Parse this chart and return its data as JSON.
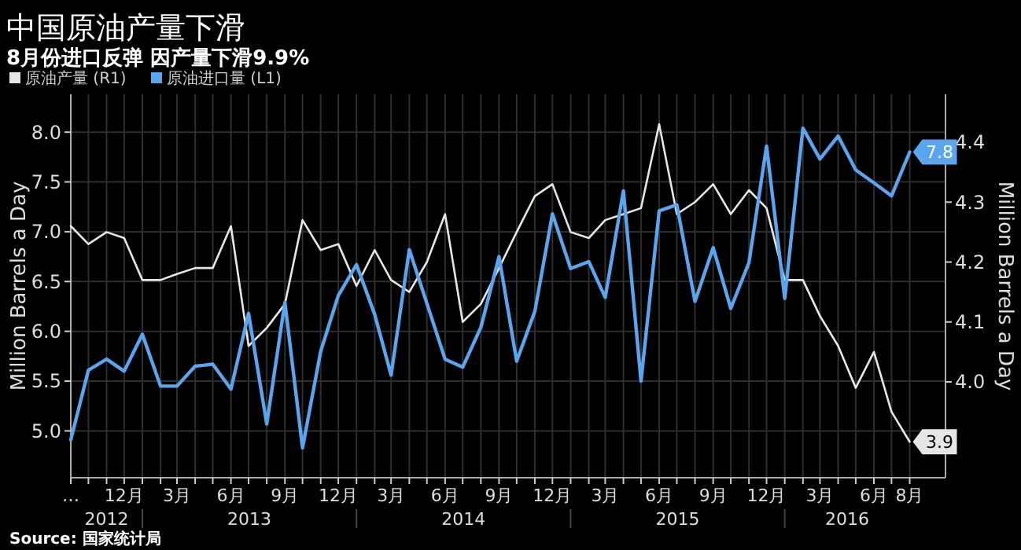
{
  "chart_data": {
    "type": "line",
    "title": "中国原油产量下滑",
    "subtitle": "8月份进口反弹 因产量下滑9.9%",
    "ylabel": "Million Barrels a Day",
    "y2label": "Million Barrels a Day",
    "x": [
      "2012-09",
      "2012-10",
      "2012-11",
      "2012-12",
      "2013-01",
      "2013-02",
      "2013-03",
      "2013-04",
      "2013-05",
      "2013-06",
      "2013-07",
      "2013-08",
      "2013-09",
      "2013-10",
      "2013-11",
      "2013-12",
      "2014-01",
      "2014-02",
      "2014-03",
      "2014-04",
      "2014-05",
      "2014-06",
      "2014-07",
      "2014-08",
      "2014-09",
      "2014-10",
      "2014-11",
      "2014-12",
      "2015-01",
      "2015-02",
      "2015-03",
      "2015-04",
      "2015-05",
      "2015-06",
      "2015-07",
      "2015-08",
      "2015-09",
      "2015-10",
      "2015-11",
      "2015-12",
      "2016-01",
      "2016-02",
      "2016-03",
      "2016-04",
      "2016-05",
      "2016-06",
      "2016-07",
      "2016-08"
    ],
    "series": [
      {
        "name": "原油产量 (R1)",
        "color": "#e6e6e6",
        "axis": "y2",
        "values": [
          4.26,
          4.23,
          4.25,
          4.24,
          4.17,
          4.17,
          4.18,
          4.19,
          4.19,
          4.26,
          4.06,
          4.09,
          4.13,
          4.27,
          4.22,
          4.23,
          4.16,
          4.22,
          4.17,
          4.15,
          4.2,
          4.28,
          4.1,
          4.13,
          4.19,
          4.25,
          4.31,
          4.33,
          4.25,
          4.24,
          4.27,
          4.28,
          4.29,
          4.43,
          4.28,
          4.3,
          4.33,
          4.28,
          4.32,
          4.29,
          4.17,
          4.17,
          4.11,
          4.06,
          3.99,
          4.05,
          3.95,
          3.9
        ],
        "value_labels": [
          null,
          null,
          null,
          null,
          null,
          null,
          null,
          null,
          null,
          null,
          null,
          null,
          null,
          null,
          null,
          null,
          null,
          null,
          null,
          null,
          null,
          null,
          null,
          null,
          null,
          null,
          null,
          null,
          null,
          null,
          null,
          null,
          null,
          null,
          null,
          null,
          null,
          null,
          null,
          null,
          null,
          null,
          null,
          null,
          null,
          null,
          null,
          "3.9"
        ]
      },
      {
        "name": "原油进口量 (L1)",
        "color": "#5aa5ee",
        "axis": "y",
        "values": [
          4.91,
          5.61,
          5.72,
          5.6,
          5.97,
          5.45,
          5.45,
          5.65,
          5.67,
          5.42,
          6.18,
          5.07,
          6.29,
          4.83,
          5.8,
          6.36,
          6.67,
          6.17,
          5.56,
          6.82,
          6.28,
          5.72,
          5.64,
          6.04,
          6.75,
          5.7,
          6.2,
          7.18,
          6.63,
          6.7,
          6.34,
          7.41,
          5.5,
          7.21,
          7.27,
          6.3,
          6.84,
          6.23,
          6.69,
          7.86,
          6.33,
          8.04,
          7.73,
          7.96,
          7.62,
          7.49,
          7.36,
          7.8
        ],
        "value_labels": [
          null,
          null,
          null,
          null,
          null,
          null,
          null,
          null,
          null,
          null,
          null,
          null,
          null,
          null,
          null,
          null,
          null,
          null,
          null,
          null,
          null,
          null,
          null,
          null,
          null,
          null,
          null,
          null,
          null,
          null,
          null,
          null,
          null,
          null,
          null,
          null,
          null,
          null,
          null,
          null,
          null,
          null,
          null,
          null,
          null,
          null,
          null,
          "7.8"
        ]
      }
    ],
    "xlim": [
      "2012-09",
      "2016-10"
    ],
    "xticks": [
      {
        "value": "2012-09",
        "label": "…"
      },
      {
        "value": "2012-10",
        "label": null
      },
      {
        "value": "2012-11",
        "label": null
      },
      {
        "value": "2012-12",
        "label": "12月"
      },
      {
        "value": "2013-01",
        "label": null
      },
      {
        "value": "2013-02",
        "label": null
      },
      {
        "value": "2013-03",
        "label": "3月"
      },
      {
        "value": "2013-04",
        "label": null
      },
      {
        "value": "2013-05",
        "label": null
      },
      {
        "value": "2013-06",
        "label": "6月"
      },
      {
        "value": "2013-07",
        "label": null
      },
      {
        "value": "2013-08",
        "label": null
      },
      {
        "value": "2013-09",
        "label": "9月"
      },
      {
        "value": "2013-10",
        "label": null
      },
      {
        "value": "2013-11",
        "label": null
      },
      {
        "value": "2013-12",
        "label": "12月"
      },
      {
        "value": "2014-01",
        "label": null
      },
      {
        "value": "2014-02",
        "label": null
      },
      {
        "value": "2014-03",
        "label": "3月"
      },
      {
        "value": "2014-04",
        "label": null
      },
      {
        "value": "2014-05",
        "label": null
      },
      {
        "value": "2014-06",
        "label": "6月"
      },
      {
        "value": "2014-07",
        "label": null
      },
      {
        "value": "2014-08",
        "label": null
      },
      {
        "value": "2014-09",
        "label": "9月"
      },
      {
        "value": "2014-10",
        "label": null
      },
      {
        "value": "2014-11",
        "label": null
      },
      {
        "value": "2014-12",
        "label": "12月"
      },
      {
        "value": "2015-01",
        "label": null
      },
      {
        "value": "2015-02",
        "label": null
      },
      {
        "value": "2015-03",
        "label": "3月"
      },
      {
        "value": "2015-04",
        "label": null
      },
      {
        "value": "2015-05",
        "label": null
      },
      {
        "value": "2015-06",
        "label": "6月"
      },
      {
        "value": "2015-07",
        "label": null
      },
      {
        "value": "2015-08",
        "label": null
      },
      {
        "value": "2015-09",
        "label": "9月"
      },
      {
        "value": "2015-10",
        "label": null
      },
      {
        "value": "2015-11",
        "label": null
      },
      {
        "value": "2015-12",
        "label": "12月"
      },
      {
        "value": "2016-01",
        "label": null
      },
      {
        "value": "2016-02",
        "label": null
      },
      {
        "value": "2016-03",
        "label": "3月"
      },
      {
        "value": "2016-04",
        "label": null
      },
      {
        "value": "2016-05",
        "label": null
      },
      {
        "value": "2016-06",
        "label": "6月"
      },
      {
        "value": "2016-07",
        "label": null
      },
      {
        "value": "2016-08",
        "label": "8月"
      }
    ],
    "ylim": [
      4.53,
      8.38
    ],
    "yticks": [
      {
        "value": 5,
        "label": "5.0"
      },
      {
        "value": 5.5,
        "label": "5.5"
      },
      {
        "value": 6,
        "label": "6.0"
      },
      {
        "value": 6.5,
        "label": "6.5"
      },
      {
        "value": 7,
        "label": "7.0"
      },
      {
        "value": 7.5,
        "label": "7.5"
      },
      {
        "value": 8,
        "label": "8.0"
      }
    ],
    "y2lim": [
      3.84,
      4.48
    ],
    "y2ticks": [
      {
        "value": 4,
        "label": "4.0"
      },
      4.1,
      4.2,
      4.3,
      4.4
    ],
    "grid": true,
    "legend": "top left",
    "marker": "none",
    "line_style": "solid",
    "annotations": [
      "2012",
      "2013",
      "2014",
      "2015",
      "2016",
      "Source: 国家统计局"
    ]
  }
}
